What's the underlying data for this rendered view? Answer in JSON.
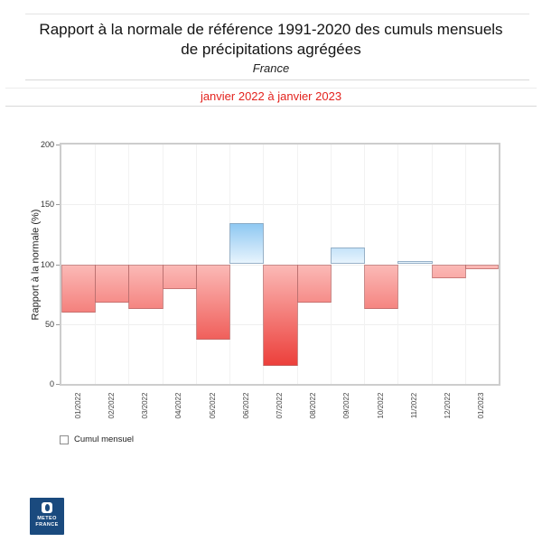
{
  "header": {
    "title_line1": "Rapport à la normale de référence 1991-2020 des cumuls mensuels",
    "title_line2": "de précipitations agrégées",
    "region": "France",
    "period": "janvier 2022 à janvier 2023",
    "period_color": "#e3231e"
  },
  "chart_data": {
    "type": "bar",
    "title": "Rapport à la normale de référence 1991-2020 des cumuls mensuels de précipitations agrégées",
    "subtitle": "France — janvier 2022 à janvier 2023",
    "xlabel": "",
    "ylabel": "Rapport à la normale (%)",
    "ylim": [
      0,
      200
    ],
    "yticks": [
      0,
      50,
      100,
      150,
      200
    ],
    "baseline": 100,
    "grid": true,
    "legend_position": "bottom-left",
    "categories": [
      "01/2022",
      "02/2022",
      "03/2022",
      "04/2022",
      "05/2022",
      "06/2022",
      "07/2022",
      "08/2022",
      "09/2022",
      "10/2022",
      "11/2022",
      "12/2022",
      "01/2023"
    ],
    "series": [
      {
        "name": "Cumul mensuel",
        "values": [
          60,
          68,
          63,
          79,
          37,
          134,
          15,
          68,
          114,
          63,
          103,
          88,
          96
        ]
      }
    ],
    "colors": {
      "deficit_gradient_at_100": "#fbb9b6",
      "deficit_gradient_at_0": "#e92722",
      "surplus_gradient_at_150": "#5fb1ec",
      "surplus_gradient_at_100": "#e8f4fd"
    }
  },
  "logo": {
    "line1": "METEO",
    "line2": "FRANCE",
    "background": "#1a4a7e"
  }
}
